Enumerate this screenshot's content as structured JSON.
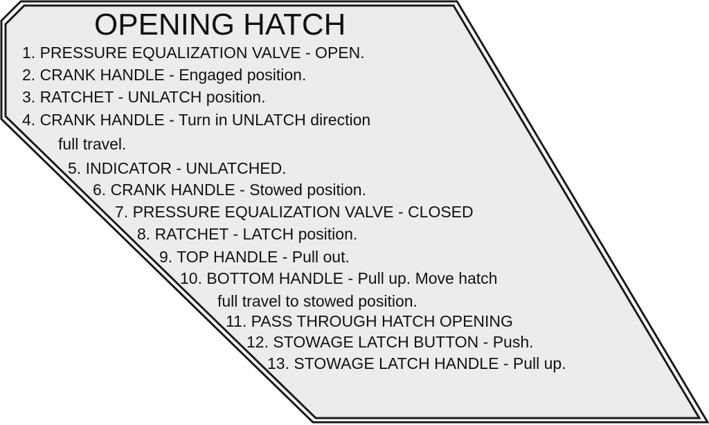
{
  "colors": {
    "panel_fill": "#ececec",
    "outline": "#1a1a1a",
    "text": "#111111"
  },
  "placard": {
    "title": "OPENING HATCH",
    "steps": [
      "1. PRESSURE EQUALIZATION VALVE - OPEN.",
      "2. CRANK HANDLE - Engaged position.",
      "3. RATCHET - UNLATCH position.",
      "4. CRANK HANDLE - Turn in UNLATCH direction",
      "full travel.",
      "5. INDICATOR - UNLATCHED.",
      "6. CRANK HANDLE - Stowed position.",
      "7. PRESSURE EQUALIZATION VALVE - CLOSED",
      "8. RATCHET - LATCH position.",
      "9. TOP HANDLE - Pull out.",
      "10. BOTTOM HANDLE - Pull up. Move hatch",
      "full travel to stowed position.",
      "11. PASS THROUGH HATCH OPENING",
      "12. STOWAGE LATCH BUTTON - Push.",
      "13. STOWAGE LATCH HANDLE - Pull up."
    ]
  }
}
